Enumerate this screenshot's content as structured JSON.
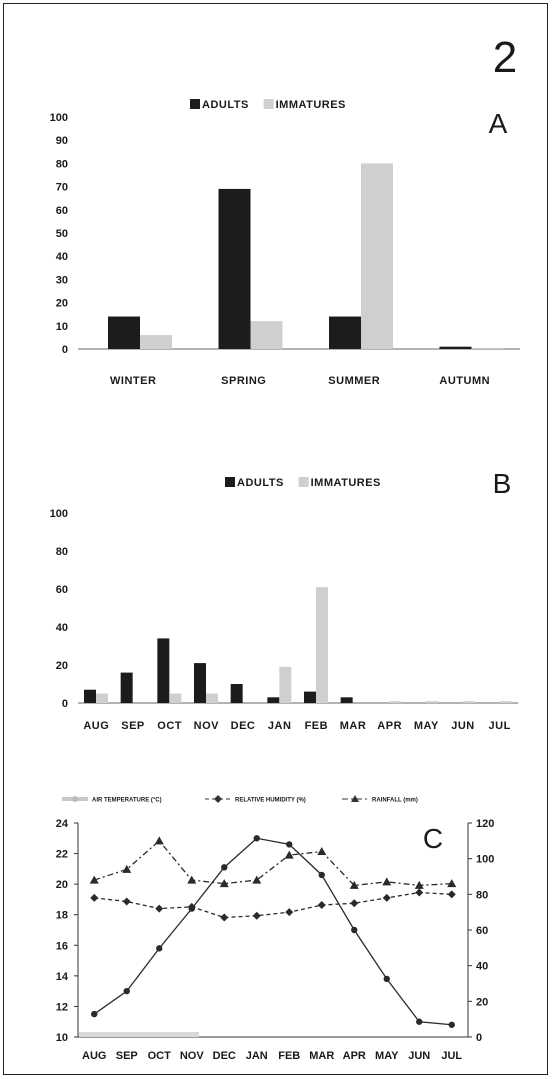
{
  "figure_number": "2",
  "chart_data": [
    {
      "panel": "A",
      "type": "bar",
      "categories": [
        "WINTER",
        "SPRING",
        "SUMMER",
        "AUTUMN"
      ],
      "series": [
        {
          "name": "ADULTS",
          "values": [
            14,
            69,
            14,
            1
          ],
          "color": "#1c1c1c"
        },
        {
          "name": "IMMATURES",
          "values": [
            6,
            12,
            80,
            0.5
          ],
          "color": "#cfcfcf"
        }
      ],
      "ylim": [
        0,
        100
      ],
      "yticks": [
        0,
        10,
        20,
        30,
        40,
        50,
        60,
        70,
        80,
        90,
        100
      ],
      "legend_position": "top"
    },
    {
      "panel": "B",
      "type": "bar",
      "categories": [
        "AUG",
        "SEP",
        "OCT",
        "NOV",
        "DEC",
        "JAN",
        "FEB",
        "MAR",
        "APR",
        "MAY",
        "JUN",
        "JUL"
      ],
      "series": [
        {
          "name": "ADULTS",
          "values": [
            7,
            16,
            34,
            21,
            10,
            3,
            6,
            3,
            0,
            0,
            0,
            0
          ],
          "color": "#1c1c1c"
        },
        {
          "name": "IMMATURES",
          "values": [
            5,
            0,
            5,
            5,
            0,
            19,
            61,
            0,
            1,
            1,
            1,
            1
          ],
          "color": "#cfcfcf"
        }
      ],
      "ylim": [
        0,
        100
      ],
      "yticks": [
        0,
        20,
        40,
        60,
        80,
        100
      ],
      "legend_position": "top"
    },
    {
      "panel": "C",
      "type": "line",
      "categories": [
        "AUG",
        "SEP",
        "OCT",
        "NOV",
        "DEC",
        "JAN",
        "FEB",
        "MAR",
        "APR",
        "MAY",
        "JUN",
        "JUL"
      ],
      "series": [
        {
          "name": "AIR TEMPERATURE (°C)",
          "axis": "left",
          "values": [
            11.5,
            13,
            15.8,
            18.4,
            21.1,
            23,
            22.6,
            20.6,
            17,
            13.8,
            11,
            10.8
          ],
          "marker": "circle",
          "line": "solid",
          "color": "#2a2a2a"
        },
        {
          "name": "RELATIVE HUMIDITY (%)",
          "axis": "right",
          "values": [
            78,
            76,
            72,
            73,
            67,
            68,
            70,
            74,
            75,
            78,
            81,
            80
          ],
          "marker": "diamond",
          "line": "dashed",
          "color": "#2a2a2a"
        },
        {
          "name": "RAINFALL (mm)",
          "axis": "right",
          "values": [
            88,
            94,
            110,
            88,
            86,
            88,
            102,
            104,
            85,
            87,
            85,
            86
          ],
          "marker": "triangle",
          "line": "dashdot",
          "color": "#2a2a2a"
        }
      ],
      "ylim_left": [
        10,
        24
      ],
      "yticks_left": [
        10,
        12,
        14,
        16,
        18,
        20,
        22,
        24
      ],
      "ylim_right": [
        0,
        120
      ],
      "yticks_right": [
        0,
        20,
        40,
        60,
        80,
        100,
        120
      ],
      "legend_position": "top"
    }
  ]
}
